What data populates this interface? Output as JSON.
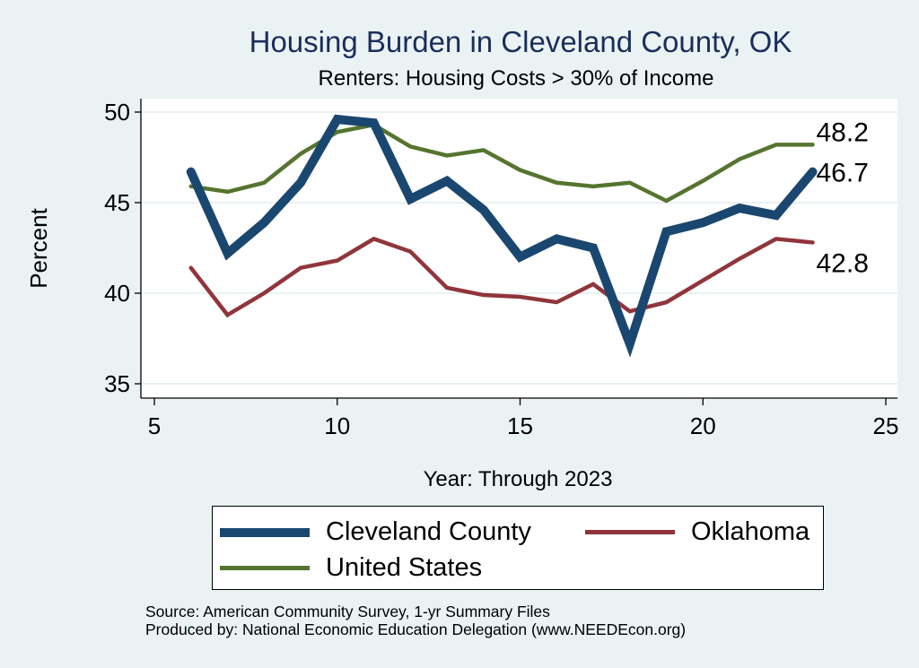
{
  "chart_data": {
    "type": "line",
    "title": "Housing Burden in Cleveland County, OK",
    "subtitle": "Renters: Housing Costs > 30% of Income",
    "xlabel": "Year: Through 2023",
    "ylabel": "Percent",
    "xlim": [
      5,
      25
    ],
    "ylim": [
      35,
      50
    ],
    "xticks": [
      5,
      10,
      15,
      20,
      25
    ],
    "yticks": [
      35,
      40,
      45,
      50
    ],
    "grid": true,
    "legend_position": "bottom",
    "x": [
      6,
      7,
      8,
      9,
      10,
      11,
      12,
      13,
      14,
      15,
      16,
      17,
      18,
      19,
      20,
      21,
      22,
      23
    ],
    "series": [
      {
        "name": "Cleveland County",
        "color": "#1a476f",
        "values": [
          46.7,
          42.2,
          43.9,
          46.1,
          49.6,
          49.4,
          45.2,
          46.2,
          44.6,
          42.0,
          43.0,
          42.5,
          37.2,
          43.4,
          43.9,
          44.7,
          44.3,
          46.7
        ],
        "end_label": "46.7"
      },
      {
        "name": "Oklahoma",
        "color": "#90353b",
        "values": [
          41.4,
          38.8,
          40.0,
          41.4,
          41.8,
          43.0,
          42.3,
          40.3,
          39.9,
          39.8,
          39.5,
          40.5,
          39.0,
          39.5,
          40.7,
          41.9,
          43.0,
          42.8
        ],
        "end_label": "42.8"
      },
      {
        "name": "United States",
        "color": "#55752f",
        "values": [
          45.9,
          45.6,
          46.1,
          47.7,
          48.9,
          49.3,
          48.1,
          47.6,
          47.9,
          46.8,
          46.1,
          45.9,
          46.1,
          45.1,
          46.2,
          47.4,
          48.2,
          48.2
        ],
        "end_label": "48.2"
      }
    ]
  },
  "footer": {
    "source": "Source: American Community Survey, 1-yr Summary Files",
    "produced": "Produced by: National Economic Education Delegation (www.NEEDEcon.org)"
  }
}
